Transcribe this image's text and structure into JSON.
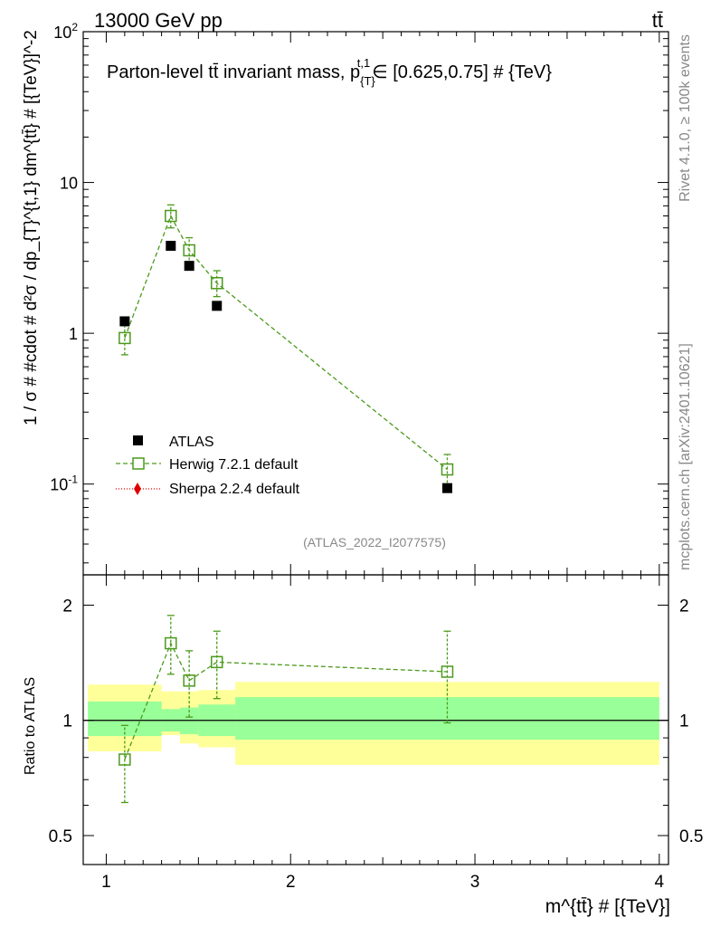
{
  "header": {
    "energy_label": "13000 GeV pp",
    "process_label": "tt̄",
    "rivet_label": "Rivet 4.1.0, ≥ 100k events",
    "mcplots_label": "mcplots.cern.ch [arXiv:2401.10621]",
    "analysis_label": "(ATLAS_2022_I2077575)"
  },
  "chart_data": [
    {
      "type": "scatter",
      "panel": "main",
      "title": "Parton-level tt̄ invariant mass, p_{T}^{t,1} ∈ [0.625,0.75] # {TeV}",
      "title_parts": [
        "Parton-level t",
        "t̄",
        " invariant mass, p",
        "{T}",
        "t,1",
        "∈ [0.625,0.75] # {TeV}"
      ],
      "ylabel": "1 / σ # #cdot # d²σ / dp_{T}^{t,1} dm^{tt̄} # [{TeV}]^-2",
      "yscale": "log",
      "ylim": [
        0.025,
        100
      ],
      "xlim": [
        0.875,
        4.05
      ],
      "ytick_labels": [
        "10^-1",
        "1",
        "10",
        "10^2"
      ],
      "series": [
        {
          "name": "ATLAS",
          "marker": "filled-square",
          "color": "#000000",
          "x": [
            1.1,
            1.35,
            1.45,
            1.6,
            2.85
          ],
          "y": [
            1.2,
            3.8,
            2.8,
            1.52,
            0.094
          ],
          "yerr_low": [
            1.16,
            3.7,
            2.62,
            1.45,
            0.092
          ],
          "yerr_high": [
            1.24,
            3.9,
            2.98,
            1.59,
            0.096
          ]
        },
        {
          "name": "Herwig 7.2.1 default",
          "marker": "open-square",
          "color": "#4c9a1c",
          "line": "dashed",
          "x": [
            1.1,
            1.35,
            1.45,
            1.6,
            2.85
          ],
          "y": [
            0.93,
            6.0,
            3.55,
            2.15,
            0.125
          ],
          "yerr_low": [
            0.72,
            5.0,
            2.85,
            1.75,
            0.095
          ],
          "yerr_high": [
            1.14,
            7.1,
            4.3,
            2.6,
            0.157
          ]
        },
        {
          "name": "Sherpa 2.2.4 default",
          "marker": "filled-diamond",
          "color": "#e00000",
          "line": "dotted",
          "x": [],
          "y": []
        }
      ]
    },
    {
      "type": "scatter",
      "panel": "ratio",
      "xlabel": "m^{tt̄} # [{TeV}]",
      "ylabel": "Ratio to ATLAS",
      "yscale": "log",
      "ylim": [
        0.42,
        2.4
      ],
      "xlim": [
        0.875,
        4.05
      ],
      "ytick_labels": [
        "0.5",
        "1",
        "2"
      ],
      "xtick_labels": [
        "1",
        "2",
        "3",
        "4"
      ],
      "bands": {
        "bins": [
          [
            0.9,
            1.3
          ],
          [
            1.3,
            1.4
          ],
          [
            1.4,
            1.5
          ],
          [
            1.5,
            1.7
          ],
          [
            1.7,
            4.0
          ]
        ],
        "stat_low": [
          0.91,
          0.935,
          0.92,
          0.91,
          0.89
        ],
        "stat_high": [
          1.12,
          1.07,
          1.08,
          1.1,
          1.15
        ],
        "total_low": [
          0.83,
          0.915,
          0.87,
          0.85,
          0.765
        ],
        "total_high": [
          1.24,
          1.19,
          1.19,
          1.2,
          1.26
        ],
        "stat_color": "#99ff99",
        "total_color": "#ffff99"
      },
      "series": [
        {
          "name": "Herwig 7.2.1 default",
          "marker": "open-square",
          "color": "#4c9a1c",
          "x": [
            1.1,
            1.35,
            1.45,
            1.6,
            2.85
          ],
          "y": [
            0.79,
            1.59,
            1.27,
            1.42,
            1.34
          ],
          "yerr_low": [
            0.61,
            1.32,
            1.02,
            1.14,
            0.985
          ],
          "yerr_high": [
            0.97,
            1.88,
            1.52,
            1.71,
            1.71
          ]
        }
      ]
    }
  ]
}
